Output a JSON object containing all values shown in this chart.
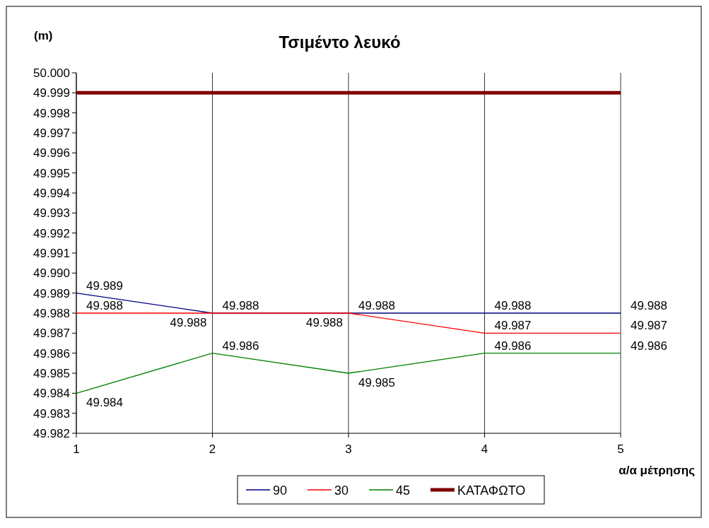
{
  "chart_data": {
    "type": "line",
    "title": "Τσιμέντο λευκό",
    "ylabel": "(m)",
    "xlabel": "α/α μέτρησης",
    "x": [
      1,
      2,
      3,
      4,
      5
    ],
    "xlim": [
      1,
      5
    ],
    "xticks": [
      1,
      2,
      3,
      4,
      5
    ],
    "ylim": [
      49.982,
      50
    ],
    "yticks": [
      49.982,
      49.983,
      49.984,
      49.985,
      49.986,
      49.987,
      49.988,
      49.989,
      {
        "value": 49.99,
        "label": "49.990"
      },
      49.991,
      49.992,
      49.993,
      49.994,
      49.995,
      49.996,
      49.997,
      49.998,
      49.999,
      {
        "value": 50,
        "label": "50.000"
      }
    ],
    "grid": "x",
    "legend": "bottom",
    "marker": "none",
    "line_style": "solid",
    "series": [
      {
        "name": "90",
        "color": "#000080",
        "values": [
          49.989,
          49.988,
          49.988,
          49.988,
          49.988
        ],
        "value_labels": [
          "49.989",
          "49.988",
          "49.988",
          "49.988",
          "49.988"
        ]
      },
      {
        "name": "30",
        "color": "#ff0000",
        "values": [
          49.988,
          49.988,
          49.988,
          49.987,
          49.987
        ],
        "value_labels": [
          "49.988",
          "49.988",
          "49.988",
          "49.987",
          "49.987"
        ]
      },
      {
        "name": "45",
        "color": "#008000",
        "values": [
          49.984,
          49.986,
          49.985,
          49.986,
          49.986
        ],
        "value_labels": [
          "49.984",
          "49.986",
          "49.985",
          "49.986",
          "49.986"
        ]
      },
      {
        "name": "ΚΑΤΑΦΩΤΟ",
        "color": "#800000",
        "values": [
          49.999,
          49.999,
          49.999,
          49.999,
          49.999
        ]
      }
    ]
  }
}
